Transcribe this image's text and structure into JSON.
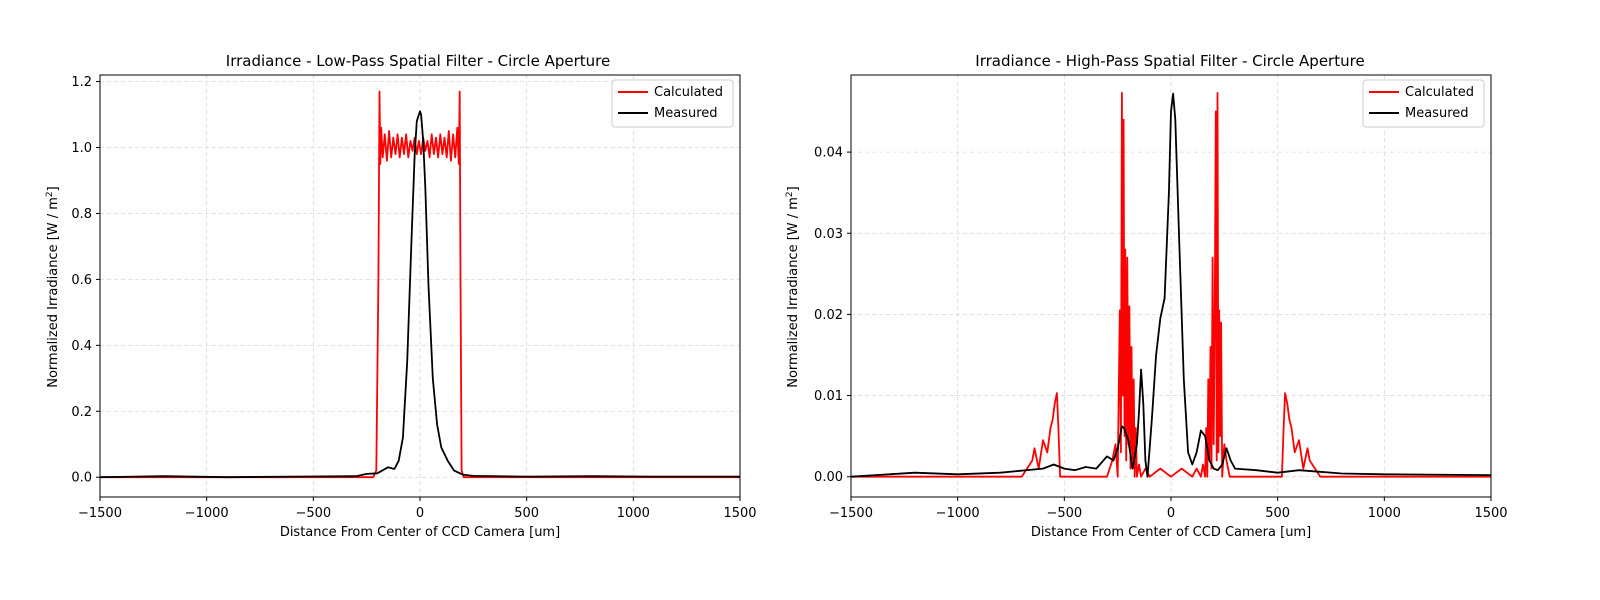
{
  "colors": {
    "calculated": "#ff0000",
    "measured": "#000000",
    "grid": "#d9d9d9"
  },
  "chart_data": [
    {
      "type": "line",
      "title": "Irradiance - Low-Pass Spatial Filter - Circle Aperture",
      "xlabel": "Distance From Center of CCD Camera [um]",
      "ylabel": "Normalized Irradiance [W / m",
      "ylabel_sup": "2",
      "ylabel_end": "]",
      "xlim": [
        -1500,
        1500
      ],
      "ylim": [
        -0.06,
        1.22
      ],
      "xticks": [
        -1500,
        -1000,
        -500,
        0,
        500,
        1000,
        1500
      ],
      "xtick_labels": [
        "−1500",
        "−1000",
        "−500",
        "0",
        "500",
        "1000",
        "1500"
      ],
      "yticks": [
        0.0,
        0.2,
        0.4,
        0.6,
        0.8,
        1.0,
        1.2
      ],
      "ytick_labels": [
        "0.0",
        "0.2",
        "0.4",
        "0.6",
        "0.8",
        "1.0",
        "1.2"
      ],
      "grid": true,
      "legend_position": "top-right",
      "series": [
        {
          "name": "Calculated",
          "color": "#ff0000",
          "x": [
            -1500,
            -220,
            -205,
            -195,
            -190,
            -186,
            -182,
            -175,
            -165,
            -155,
            -145,
            -135,
            -125,
            -115,
            -105,
            -95,
            -85,
            -75,
            -65,
            -55,
            -45,
            -35,
            -25,
            -15,
            -5,
            5,
            15,
            25,
            35,
            45,
            55,
            65,
            75,
            85,
            95,
            105,
            115,
            125,
            135,
            145,
            155,
            165,
            175,
            182,
            186,
            190,
            195,
            205,
            220,
            1500
          ],
          "y": [
            0.0,
            0.0,
            0.02,
            0.6,
            1.17,
            0.95,
            1.06,
            0.97,
            1.04,
            0.96,
            1.05,
            0.97,
            1.03,
            0.98,
            1.04,
            0.97,
            1.03,
            0.98,
            1.04,
            0.97,
            1.02,
            0.99,
            1.03,
            0.98,
            1.02,
            0.98,
            1.03,
            0.99,
            1.02,
            0.97,
            1.04,
            0.98,
            1.03,
            0.97,
            1.04,
            0.98,
            1.03,
            0.97,
            1.05,
            0.96,
            1.04,
            0.97,
            1.06,
            0.95,
            1.17,
            0.6,
            0.02,
            0.0,
            0.0,
            0.0
          ]
        },
        {
          "name": "Measured",
          "color": "#000000",
          "x": [
            -1500,
            -1200,
            -900,
            -600,
            -300,
            -250,
            -200,
            -150,
            -120,
            -100,
            -80,
            -60,
            -40,
            -25,
            -15,
            -5,
            0,
            5,
            15,
            25,
            40,
            60,
            80,
            100,
            130,
            160,
            200,
            250,
            500,
            800,
            1100,
            1500
          ],
          "y": [
            0.0,
            0.003,
            0.0,
            0.002,
            0.003,
            0.01,
            0.012,
            0.03,
            0.025,
            0.05,
            0.12,
            0.35,
            0.72,
            0.98,
            1.08,
            1.1,
            1.11,
            1.1,
            1.02,
            0.88,
            0.58,
            0.3,
            0.16,
            0.09,
            0.05,
            0.02,
            0.008,
            0.004,
            0.002,
            0.003,
            0.002,
            0.002
          ]
        }
      ]
    },
    {
      "type": "line",
      "title": "Irradiance - High-Pass Spatial Filter - Circle Aperture",
      "xlabel": "Distance From Center of CCD Camera [um]",
      "ylabel": "Normalized Irradiance [W / m",
      "ylabel_sup": "2",
      "ylabel_end": "]",
      "xlim": [
        -1500,
        1500
      ],
      "ylim": [
        -0.0025,
        0.0495
      ],
      "xticks": [
        -1500,
        -1000,
        -500,
        0,
        500,
        1000,
        1500
      ],
      "xtick_labels": [
        "−1500",
        "−1000",
        "−500",
        "0",
        "500",
        "1000",
        "1500"
      ],
      "yticks": [
        0.0,
        0.01,
        0.02,
        0.03,
        0.04
      ],
      "ytick_labels": [
        "0.00",
        "0.01",
        "0.02",
        "0.03",
        "0.04"
      ],
      "grid": true,
      "legend_position": "top-right",
      "series": [
        {
          "name": "Calculated",
          "color": "#ff0000",
          "x": [
            -1500,
            -700,
            -650,
            -640,
            -620,
            -600,
            -580,
            -565,
            -555,
            -545,
            -535,
            -528,
            -520,
            -500,
            -300,
            -275,
            -260,
            -250,
            -240,
            -235,
            -230,
            -226,
            -222,
            -218,
            -214,
            -210,
            -205,
            -200,
            -195,
            -190,
            -185,
            -180,
            -175,
            -170,
            -165,
            -160,
            -150,
            -140,
            -120,
            -100,
            -50,
            0,
            50,
            100,
            120,
            140,
            150,
            160,
            165,
            170,
            175,
            180,
            185,
            190,
            195,
            200,
            205,
            210,
            214,
            218,
            222,
            226,
            230,
            235,
            240,
            250,
            260,
            275,
            300,
            500,
            520,
            528,
            535,
            545,
            555,
            565,
            580,
            600,
            620,
            640,
            650,
            700,
            1500
          ],
          "y": [
            0.0,
            0.0,
            0.002,
            0.0035,
            0.001,
            0.0045,
            0.003,
            0.006,
            0.007,
            0.009,
            0.0103,
            0.006,
            0.0,
            0.0,
            0.0,
            0.002,
            0.004,
            0.0,
            0.0205,
            0.003,
            0.0473,
            0.01,
            0.044,
            0.005,
            0.028,
            0.002,
            0.027,
            0.004,
            0.021,
            0.001,
            0.016,
            0.002,
            0.012,
            0.0,
            0.006,
            0.0,
            0.0015,
            0.0,
            0.001,
            0.0,
            0.001,
            0.0,
            0.001,
            0.0,
            0.001,
            0.0,
            0.0015,
            0.0,
            0.006,
            0.0,
            0.012,
            0.002,
            0.016,
            0.001,
            0.027,
            0.004,
            0.019,
            0.045,
            0.002,
            0.0473,
            0.003,
            0.0205,
            0.005,
            0.019,
            0.0,
            0.004,
            0.002,
            0.0,
            0.0,
            0.0,
            0.0,
            0.006,
            0.0103,
            0.009,
            0.007,
            0.006,
            0.003,
            0.0045,
            0.001,
            0.0035,
            0.002,
            0.0,
            0.0
          ]
        },
        {
          "name": "Measured",
          "color": "#000000",
          "x": [
            -1500,
            -1200,
            -1000,
            -800,
            -600,
            -550,
            -500,
            -450,
            -400,
            -350,
            -300,
            -270,
            -250,
            -230,
            -220,
            -200,
            -180,
            -160,
            -150,
            -140,
            -130,
            -120,
            -110,
            -90,
            -70,
            -50,
            -30,
            -10,
            0,
            10,
            20,
            40,
            60,
            80,
            100,
            120,
            140,
            160,
            180,
            200,
            220,
            240,
            260,
            280,
            300,
            400,
            500,
            600,
            700,
            800,
            1000,
            1500
          ],
          "y": [
            0.0,
            0.0005,
            0.0003,
            0.0005,
            0.001,
            0.0015,
            0.001,
            0.0008,
            0.0012,
            0.001,
            0.0025,
            0.002,
            0.0035,
            0.0062,
            0.006,
            0.0045,
            0.001,
            0.004,
            0.008,
            0.0132,
            0.009,
            0.002,
            0.0,
            0.007,
            0.015,
            0.0195,
            0.022,
            0.035,
            0.045,
            0.0472,
            0.044,
            0.028,
            0.012,
            0.003,
            0.0015,
            0.003,
            0.0057,
            0.005,
            0.002,
            0.001,
            0.0008,
            0.0015,
            0.0035,
            0.002,
            0.001,
            0.0008,
            0.0005,
            0.0008,
            0.0006,
            0.0004,
            0.0003,
            0.0002
          ]
        }
      ]
    }
  ]
}
